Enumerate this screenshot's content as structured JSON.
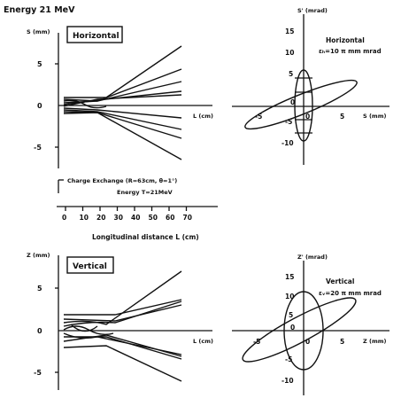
{
  "header": {
    "energy_title": "Energy 21 MeV"
  },
  "top_panel": {
    "box_label": "Horizontal",
    "y_axis_label": "S (mm)",
    "x_axis_label": "L (cm)",
    "y_ticks": [
      "5",
      "0",
      "-5"
    ]
  },
  "top_phase": {
    "y_axis_label": "S' (mrad)",
    "x_axis_label": "S (mm)",
    "title": "Horizontal",
    "emittance": "εₕ=10 π mm mrad",
    "y_ticks": [
      "15",
      "10",
      "5",
      "0",
      "-5",
      "-10"
    ],
    "x_ticks": [
      "-5",
      "0",
      "5"
    ]
  },
  "scale_bar": {
    "caption_line1": "Charge Exchange (R=63cm, θ=1°)",
    "caption_line2": "Energy  T=21MeV",
    "ticks": [
      "0",
      "10",
      "20",
      "30",
      "40",
      "50",
      "60",
      "70"
    ],
    "axis_label": "Longitudinal distance  L (cm)"
  },
  "bottom_panel": {
    "box_label": "Vertical",
    "y_axis_label": "Z (mm)",
    "x_axis_label": "L (cm)",
    "y_ticks": [
      "5",
      "0",
      "-5"
    ]
  },
  "bottom_phase": {
    "y_axis_label": "Z' (mrad)",
    "x_axis_label": "Z (mm)",
    "title": "Vertical",
    "emittance": "εᵥ=20 π mm mrad",
    "y_ticks": [
      "15",
      "10",
      "5",
      "0",
      "-5",
      "-10"
    ],
    "x_ticks": [
      "-5",
      "0",
      "5"
    ]
  },
  "colors": {
    "ink": "#111111",
    "paper": "#ffffff"
  }
}
